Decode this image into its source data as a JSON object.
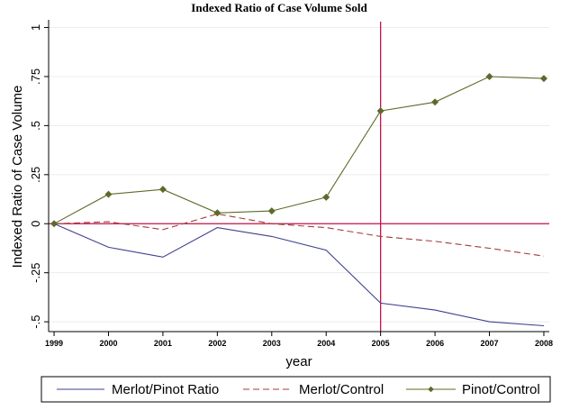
{
  "chart_data": {
    "type": "line",
    "title": "Indexed Ratio of Case Volume Sold",
    "xlabel": "year",
    "ylabel": "Indexed Ratio of Case Volume",
    "x": [
      1999,
      2000,
      2001,
      2002,
      2003,
      2004,
      2005,
      2006,
      2007,
      2008
    ],
    "xticks": [
      "1999",
      "2000",
      "2001",
      "2002",
      "2003",
      "2004",
      "2005",
      "2006",
      "2007",
      "2008"
    ],
    "yticks": [
      {
        "value": 1,
        "label": "1"
      },
      {
        "value": 0.75,
        "label": ".75"
      },
      {
        "value": 0.5,
        "label": ".5"
      },
      {
        "value": 0.25,
        "label": ".25"
      },
      {
        "value": 0,
        "label": "0"
      },
      {
        "value": -0.25,
        "label": "-.25"
      },
      {
        "value": -0.5,
        "label": "-.5"
      }
    ],
    "ylim": [
      -0.55,
      1.03
    ],
    "xlim": [
      1998.9,
      2008.1
    ],
    "grid": true,
    "reference_lines": {
      "horizontal_y": 0,
      "vertical_x": 2005,
      "color": "#c4124b"
    },
    "legend_position": "bottom",
    "series": [
      {
        "name": "Merlot/Pinot Ratio",
        "style": "solid",
        "color": "#3f3f8f",
        "marker": "none",
        "values": [
          0,
          -0.12,
          -0.17,
          -0.02,
          -0.065,
          -0.135,
          -0.405,
          -0.44,
          -0.5,
          -0.52
        ]
      },
      {
        "name": "Merlot/Control",
        "style": "dashed",
        "color": "#a23b3b",
        "marker": "none",
        "values": [
          0,
          0.01,
          -0.03,
          0.05,
          0.0,
          -0.02,
          -0.065,
          -0.09,
          -0.125,
          -0.165
        ]
      },
      {
        "name": "Pinot/Control",
        "style": "solid",
        "color": "#5d6b2a",
        "marker": "diamond",
        "values": [
          0,
          0.15,
          0.175,
          0.055,
          0.065,
          0.135,
          0.575,
          0.62,
          0.75,
          0.74
        ]
      }
    ]
  }
}
